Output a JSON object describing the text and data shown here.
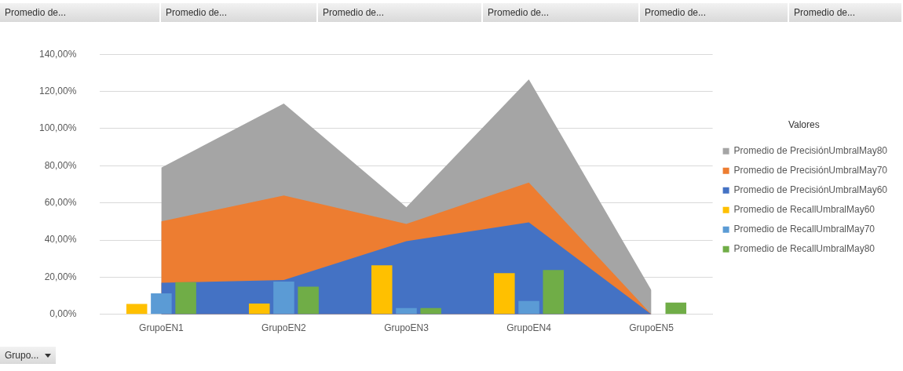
{
  "chart_data": {
    "type": "area",
    "legend": "right",
    "legend_title": "Valores",
    "grid": "y",
    "categories": [
      "GrupoEN1",
      "GrupoEN2",
      "GrupoEN3",
      "GrupoEN4",
      "GrupoEN5"
    ],
    "series": [
      {
        "name": "Promedio de PrecisiónUmbralMay60",
        "color": "#4472c4",
        "values": [
          17,
          18.5,
          39.4,
          49.5,
          0
        ]
      },
      {
        "name": "Promedio de PrecisiónUmbralMay70",
        "color": "#ed7d31",
        "values": [
          50,
          64,
          48.7,
          71,
          0
        ]
      },
      {
        "name": "Promedio de PrecisiónUmbralMay80",
        "color": "#a5a5a5",
        "values": [
          79,
          113.5,
          57.7,
          126.5,
          13
        ]
      },
      {
        "name": "Promedio de RecallUmbralMay60",
        "type": "bar",
        "color": "#ffc000",
        "values": [
          5.6,
          5.8,
          26.4,
          22.2,
          0
        ]
      },
      {
        "name": "Promedio de RecallUmbralMay70",
        "type": "bar",
        "color": "#5b9bd5",
        "values": [
          11.3,
          17.7,
          3.4,
          7.2,
          0
        ]
      },
      {
        "name": "Promedio de RecallUmbralMay80",
        "type": "bar",
        "color": "#70ad47",
        "values": [
          17.3,
          14.9,
          3.4,
          23.9,
          6.4
        ]
      }
    ],
    "ylim": [
      0,
      140
    ],
    "yticks": [
      {
        "value": 0,
        "label": "0,00%"
      },
      {
        "value": 20,
        "label": "20,00%"
      },
      {
        "value": 40,
        "label": "40,00%"
      },
      {
        "value": 60,
        "label": "60,00%"
      },
      {
        "value": 80,
        "label": "80,00%"
      },
      {
        "value": 100,
        "label": "100,00%"
      },
      {
        "value": 120,
        "label": "120,00%"
      },
      {
        "value": 140,
        "label": "140,00%"
      }
    ],
    "annotations": [
      "Promedio de...",
      "Promedio de...",
      "Promedio de...",
      "Promedio de...",
      "Promedio de...",
      "Promedio de...",
      "Grupo..."
    ]
  }
}
